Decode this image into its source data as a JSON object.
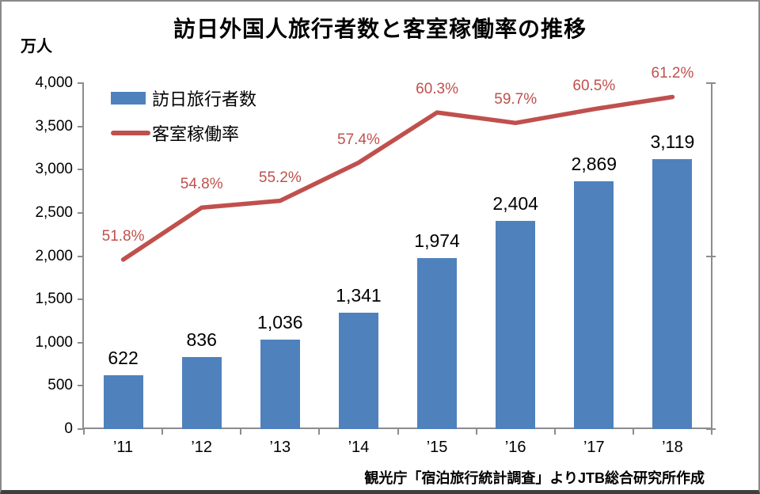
{
  "chart": {
    "title": "訪日外国人旅行者数と客室稼働率の推移",
    "unit_label": "万人",
    "source_note": "観光庁「宿泊旅行統計調査」よりJTB総合研究所作成",
    "colors": {
      "bar": "#4F81BD",
      "line": "#C0504D",
      "bar_label": "#000000",
      "line_label": "#C0504D",
      "axis": "#8C8C8C",
      "text": "#000000",
      "background": "#FFFFFF"
    }
  },
  "chart_data": {
    "type": "bar",
    "subtype": "bar+line combo",
    "title": "訪日外国人旅行者数と客室稼働率の推移",
    "categories": [
      "’11",
      "’12",
      "’13",
      "’14",
      "’15",
      "’16",
      "’17",
      "’18"
    ],
    "series": [
      {
        "name": "訪日旅行者数",
        "type": "bar",
        "axis": "primary",
        "values": [
          622,
          836,
          1036,
          1341,
          1974,
          2404,
          2869,
          3119
        ],
        "data_labels": [
          "622",
          "836",
          "1,036",
          "1,341",
          "1,974",
          "2,404",
          "2,869",
          "3,119"
        ]
      },
      {
        "name": "客室稼働率",
        "type": "line",
        "axis": "secondary",
        "values": [
          51.8,
          54.8,
          55.2,
          57.4,
          60.3,
          59.7,
          60.5,
          61.2
        ],
        "data_labels": [
          "51.8%",
          "54.8%",
          "55.2%",
          "57.4%",
          "60.3%",
          "59.7%",
          "60.5%",
          "61.2%"
        ]
      }
    ],
    "primary_axis": {
      "title": "万人",
      "min": 0,
      "max": 4000,
      "step": 500,
      "tick_labels": [
        "0",
        "500",
        "1,000",
        "1,500",
        "2,000",
        "2,500",
        "3,000",
        "3,500",
        "4,000"
      ]
    },
    "secondary_axis": {
      "min": 42,
      "max": 62,
      "tick_count": 3,
      "labels_visible": false
    },
    "legend_position": "top-left-inside",
    "grid": false
  }
}
